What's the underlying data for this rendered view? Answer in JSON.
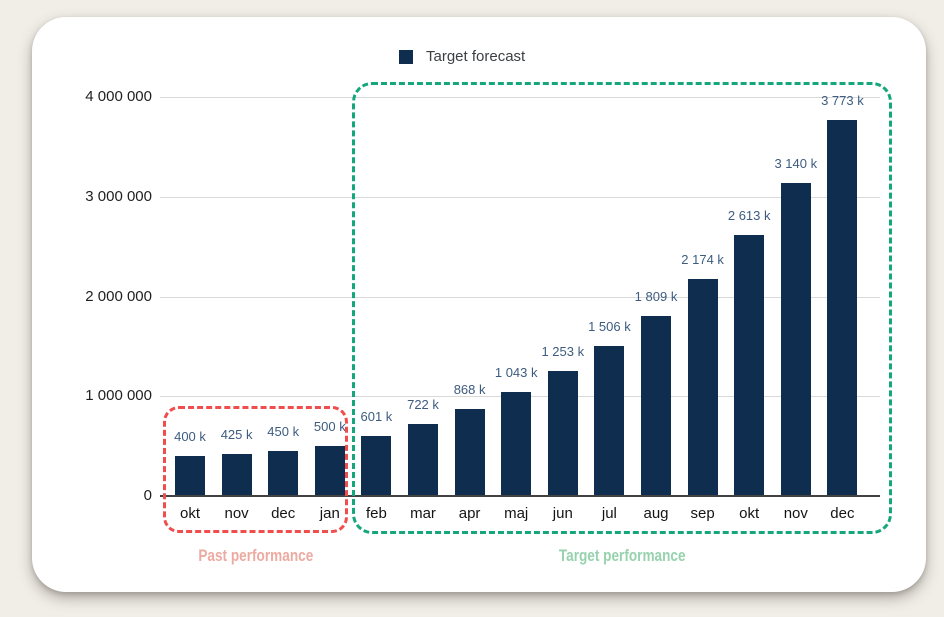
{
  "page": {
    "background": "#f1eee8",
    "card_background": "#ffffff"
  },
  "legend": {
    "items": [
      {
        "label": "Target forecast",
        "swatch_color": "#0f2d4e"
      }
    ]
  },
  "chart_data": {
    "type": "bar",
    "title": "",
    "xlabel": "",
    "ylabel": "",
    "categories": [
      "okt",
      "nov",
      "dec",
      "jan",
      "feb",
      "mar",
      "apr",
      "maj",
      "jun",
      "jul",
      "aug",
      "sep",
      "okt",
      "nov",
      "dec"
    ],
    "series": [
      {
        "name": "Target forecast",
        "values": [
          400000,
          425000,
          450000,
          500000,
          601000,
          722000,
          868000,
          1043000,
          1253000,
          1506000,
          1809000,
          2174000,
          2613000,
          3140000,
          3773000
        ]
      }
    ],
    "bar_labels": [
      "400 k",
      "425 k",
      "450 k",
      "500 k",
      "601 k",
      "722 k",
      "868 k",
      "1 043 k",
      "1 253 k",
      "1 506 k",
      "1 809 k",
      "2 174 k",
      "2 613 k",
      "3 140 k",
      "3 773 k"
    ],
    "ylim": [
      0,
      4000000
    ],
    "yticks": [
      {
        "value": 0,
        "label": "0"
      },
      {
        "value": 1000000,
        "label": "1 000 000"
      },
      {
        "value": 2000000,
        "label": "2 000 000"
      },
      {
        "value": 3000000,
        "label": "3 000 000"
      },
      {
        "value": 4000000,
        "label": "4 000 000"
      }
    ],
    "grid": true,
    "legend_position": "top",
    "bar_color": "#0f2d4e",
    "value_label_color": "#3d5c80",
    "axis_color": "#424242",
    "grid_color": "#d9d9d9"
  },
  "annotations": {
    "past_performance": {
      "label": "Past performance",
      "box_color": "#f04d4d",
      "label_color": "#edaaa1"
    },
    "target_performance": {
      "label": "Target performance",
      "box_color": "#15a77b",
      "label_color": "#97d2ad"
    }
  }
}
